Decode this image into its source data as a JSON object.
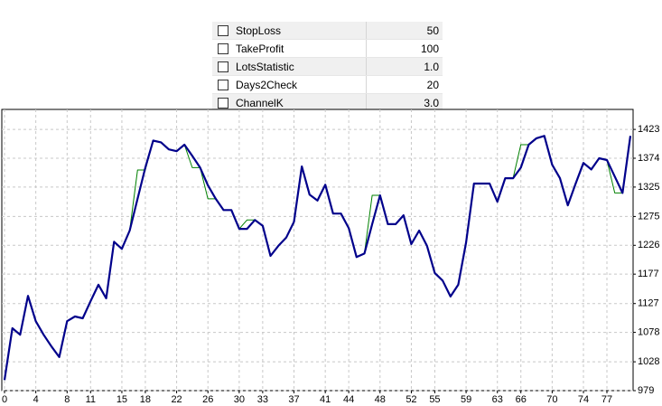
{
  "params": [
    {
      "name": "StopLoss",
      "value": "50"
    },
    {
      "name": "TakeProfit",
      "value": "100"
    },
    {
      "name": "LotsStatistic",
      "value": "1.0"
    },
    {
      "name": "Days2Check",
      "value": "20"
    },
    {
      "name": "ChannelK",
      "value": "3.0"
    }
  ],
  "chart_data": {
    "type": "line",
    "xlim": [
      0,
      80
    ],
    "xticks": [
      0,
      4,
      8,
      11,
      15,
      18,
      22,
      26,
      30,
      33,
      37,
      41,
      44,
      48,
      52,
      55,
      59,
      63,
      66,
      70,
      74,
      77
    ],
    "ylim": [
      979,
      1457
    ],
    "yticks": [
      979,
      1028,
      1078,
      1127,
      1177,
      1226,
      1275,
      1325,
      1374,
      1423
    ],
    "grid": true,
    "series": [
      {
        "color": "#008000",
        "width": 1,
        "values": [
          997,
          1085,
          1074,
          1140,
          1097,
          1074,
          1054,
          1036,
          1097,
          1105,
          1102,
          1131,
          1159,
          1136,
          1232,
          1220,
          1251,
          1354,
          1354,
          1404,
          1401,
          1389,
          1386,
          1397,
          1358,
          1358,
          1305,
          1305,
          1286,
          1286,
          1254,
          1269,
          1269,
          1259,
          1208,
          1225,
          1239,
          1266,
          1360,
          1312,
          1302,
          1329,
          1280,
          1280,
          1255,
          1206,
          1212,
          1311,
          1311,
          1262,
          1262,
          1277,
          1228,
          1251,
          1225,
          1179,
          1166,
          1139,
          1159,
          1231,
          1331,
          1331,
          1331,
          1300,
          1340,
          1340,
          1397,
          1397,
          1408,
          1412,
          1363,
          1340,
          1294,
          1331,
          1366,
          1355,
          1374,
          1371,
          1315,
          1315,
          1412
        ]
      },
      {
        "color": "#00008b",
        "width": 2.2,
        "values": [
          997,
          1085,
          1074,
          1140,
          1097,
          1074,
          1054,
          1036,
          1097,
          1105,
          1102,
          1131,
          1159,
          1136,
          1232,
          1220,
          1251,
          1305,
          1358,
          1404,
          1401,
          1389,
          1386,
          1397,
          1378,
          1358,
          1328,
          1305,
          1286,
          1286,
          1254,
          1254,
          1269,
          1259,
          1208,
          1225,
          1239,
          1266,
          1360,
          1312,
          1302,
          1329,
          1280,
          1280,
          1255,
          1206,
          1212,
          1262,
          1311,
          1262,
          1262,
          1277,
          1228,
          1251,
          1225,
          1179,
          1166,
          1139,
          1159,
          1231,
          1331,
          1331,
          1331,
          1300,
          1340,
          1340,
          1358,
          1397,
          1408,
          1412,
          1363,
          1340,
          1294,
          1331,
          1366,
          1355,
          1374,
          1371,
          1343,
          1315,
          1412
        ]
      }
    ]
  }
}
